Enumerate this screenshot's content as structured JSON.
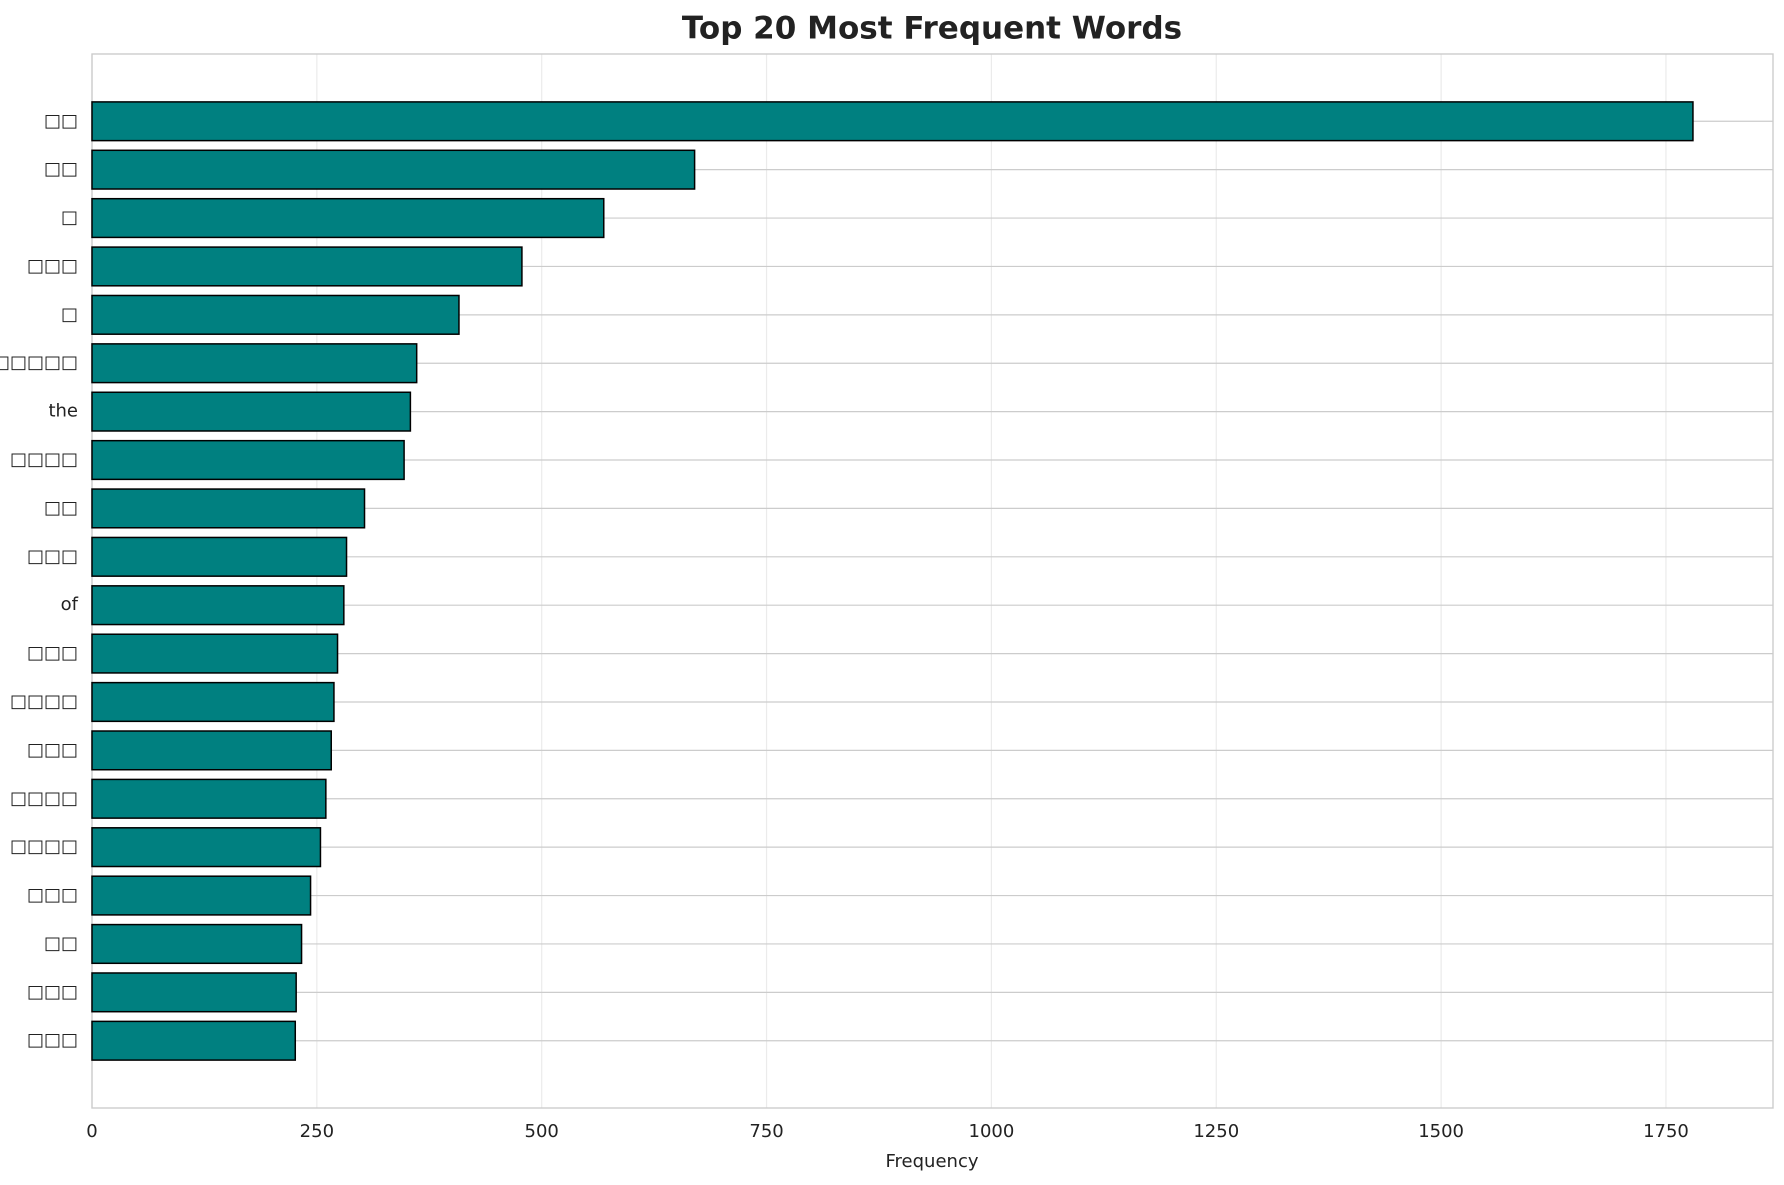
{
  "chart_data": {
    "type": "barh",
    "title": "Top 20 Most Frequent Words",
    "x_label": "Frequency",
    "categories": [
      "□□",
      "□□",
      "□",
      "□□□",
      "□",
      "□□□□□",
      "the",
      "□□□□",
      "□□",
      "□□□",
      "of",
      "□□□",
      "□□□□",
      "□□□",
      "□□□□",
      "□□□□",
      "□□□",
      "□□",
      "□□□",
      "□□□"
    ],
    "values": [
      1780,
      670,
      569,
      478,
      408,
      361,
      354,
      347,
      303,
      283,
      280,
      273,
      269,
      266,
      260,
      254,
      243,
      233,
      227,
      226
    ],
    "color": "#008080",
    "edgecolor": "#000000",
    "xlim": [
      0,
      1869
    ],
    "xticks": [
      0,
      250,
      500,
      750,
      1000,
      1250,
      1500,
      1750
    ],
    "grid": true
  }
}
